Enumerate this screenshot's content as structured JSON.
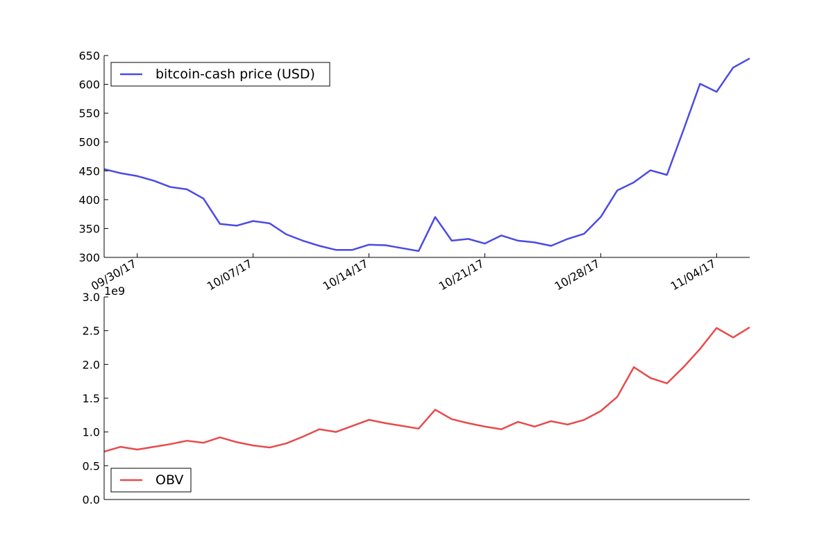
{
  "chart_data": [
    {
      "type": "line",
      "series": [
        {
          "name": "bitcoin-cash price (USD)",
          "color": "#4a4ae6",
          "values": [
            453,
            446,
            441,
            433,
            422,
            418,
            402,
            358,
            355,
            363,
            359,
            340,
            329,
            320,
            313,
            313,
            322,
            321,
            316,
            311,
            370,
            329,
            332,
            324,
            338,
            329,
            326,
            320,
            332,
            341,
            370,
            416,
            430,
            451,
            443,
            521,
            601,
            587,
            629,
            645
          ]
        }
      ],
      "x_dates": [
        "09/28/17",
        "09/29/17",
        "09/30/17",
        "10/01/17",
        "10/02/17",
        "10/03/17",
        "10/04/17",
        "10/05/17",
        "10/06/17",
        "10/07/17",
        "10/08/17",
        "10/09/17",
        "10/10/17",
        "10/11/17",
        "10/12/17",
        "10/13/17",
        "10/14/17",
        "10/15/17",
        "10/16/17",
        "10/17/17",
        "10/18/17",
        "10/19/17",
        "10/20/17",
        "10/21/17",
        "10/22/17",
        "10/23/17",
        "10/24/17",
        "10/25/17",
        "10/26/17",
        "10/27/17",
        "10/28/17",
        "10/29/17",
        "10/30/17",
        "10/31/17",
        "11/01/17",
        "11/02/17",
        "11/03/17",
        "11/04/17",
        "11/05/17",
        "11/06/17"
      ],
      "ylim": [
        300,
        650
      ],
      "yticks": [
        "300",
        "350",
        "400",
        "450",
        "500",
        "550",
        "600",
        "650"
      ],
      "xtick_labels": [
        "09/30/17",
        "10/07/17",
        "10/14/17",
        "10/21/17",
        "10/28/17",
        "11/04/17"
      ],
      "legend_position": "top-left"
    },
    {
      "type": "line",
      "series": [
        {
          "name": "OBV",
          "color": "#e84a4a",
          "values": [
            0.71,
            0.78,
            0.74,
            0.78,
            0.82,
            0.87,
            0.84,
            0.92,
            0.85,
            0.8,
            0.77,
            0.83,
            0.93,
            1.04,
            1.0,
            1.09,
            1.18,
            1.13,
            1.09,
            1.05,
            1.33,
            1.19,
            1.13,
            1.08,
            1.04,
            1.15,
            1.08,
            1.16,
            1.11,
            1.18,
            1.31,
            1.52,
            1.96,
            1.8,
            1.72,
            1.96,
            2.23,
            2.54,
            2.4,
            2.55
          ]
        }
      ],
      "x_dates": [
        "09/28/17",
        "09/29/17",
        "09/30/17",
        "10/01/17",
        "10/02/17",
        "10/03/17",
        "10/04/17",
        "10/05/17",
        "10/06/17",
        "10/07/17",
        "10/08/17",
        "10/09/17",
        "10/10/17",
        "10/11/17",
        "10/12/17",
        "10/13/17",
        "10/14/17",
        "10/15/17",
        "10/16/17",
        "10/17/17",
        "10/18/17",
        "10/19/17",
        "10/20/17",
        "10/21/17",
        "10/22/17",
        "10/23/17",
        "10/24/17",
        "10/25/17",
        "10/26/17",
        "10/27/17",
        "10/28/17",
        "10/29/17",
        "10/30/17",
        "10/31/17",
        "11/01/17",
        "11/02/17",
        "11/03/17",
        "11/04/17",
        "11/05/17",
        "11/06/17"
      ],
      "ylim": [
        0,
        3
      ],
      "yticks": [
        "0.0",
        "0.5",
        "1.0",
        "1.5",
        "2.0",
        "2.5",
        "3.0"
      ],
      "y_offset_label": "1e9",
      "legend_position": "bottom-left"
    }
  ]
}
